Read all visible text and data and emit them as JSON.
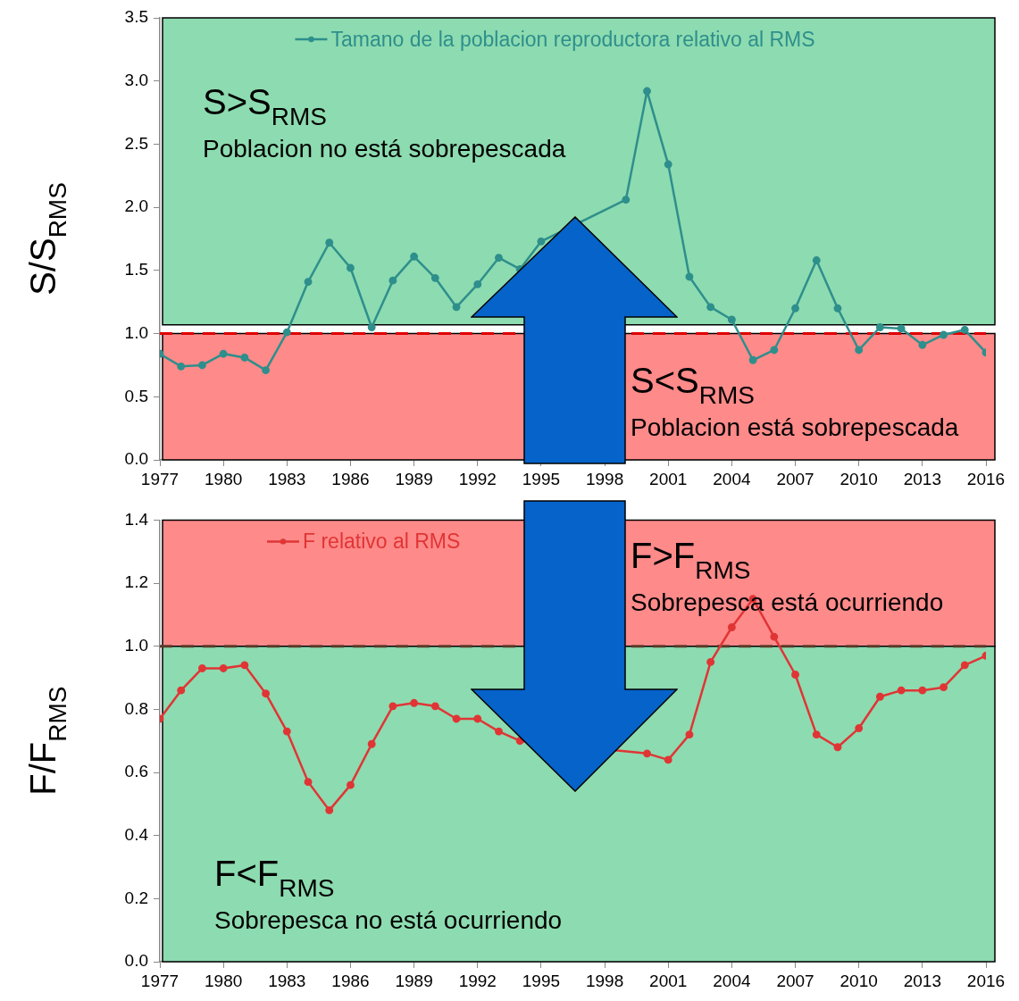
{
  "chart_data": [
    {
      "type": "line",
      "ylabel": "S/S$_{RMS}$",
      "x": [
        1977,
        1978,
        1979,
        1980,
        1981,
        1982,
        1983,
        1984,
        1985,
        1986,
        1987,
        1988,
        1989,
        1990,
        1991,
        1992,
        1993,
        1994,
        1995,
        1996,
        1997,
        1998,
        1999,
        2000,
        2001,
        2002,
        2003,
        2004,
        2005,
        2006,
        2007,
        2008,
        2009,
        2010,
        2011,
        2012,
        2013,
        2014,
        2015,
        2016
      ],
      "series": [
        {
          "name": "Tamano de la poblacion reproductora relativo al RMS",
          "color": "#2e8f8c",
          "values": [
            0.84,
            0.74,
            0.75,
            0.84,
            0.81,
            0.71,
            1.01,
            1.41,
            1.72,
            1.52,
            1.05,
            1.42,
            1.61,
            1.44,
            1.21,
            1.39,
            1.6,
            1.51,
            1.73,
            null,
            null,
            null,
            2.06,
            2.92,
            2.34,
            1.45,
            1.21,
            1.11,
            0.79,
            0.87,
            1.2,
            1.58,
            1.2,
            0.87,
            1.05,
            1.04,
            0.91,
            0.99,
            1.03,
            0.85
          ]
        }
      ],
      "xlim": [
        1977,
        2016
      ],
      "xticks": [
        1977,
        1980,
        1983,
        1986,
        1989,
        1992,
        1995,
        1998,
        2001,
        2004,
        2007,
        2010,
        2013,
        2016
      ],
      "ylim": [
        0,
        3.5
      ],
      "yticks": [
        {
          "value": 0,
          "label": "0.0"
        },
        {
          "value": 0.5,
          "label": "0.5"
        },
        {
          "value": 1,
          "label": "1.0"
        },
        {
          "value": 1.5,
          "label": "1.5"
        },
        {
          "value": 2,
          "label": "2.0"
        },
        {
          "value": 2.5,
          "label": "2.5"
        },
        {
          "value": 3,
          "label": "3.0"
        },
        {
          "value": 3.5,
          "label": "3.5"
        }
      ],
      "bands": [
        {
          "axis": "y",
          "from": 1.07,
          "to": 3.5,
          "color": "#8ddbb0",
          "label": "S>S$_{RMS}$\nPoblacion no está sobrepescada"
        },
        {
          "axis": "y",
          "from": 0,
          "to": 1,
          "color": "#ff8a8a",
          "label": "S<S$_{RMS}$\nPoblacion está sobrepescada"
        }
      ],
      "ref_lines": [
        {
          "axis": "y",
          "value": 1,
          "color": "#e00000",
          "line_style": "dashed"
        }
      ],
      "legend": "top",
      "marker": "circle"
    },
    {
      "type": "line",
      "ylabel": "F/F$_{RMS}$",
      "x": [
        1977,
        1978,
        1979,
        1980,
        1981,
        1982,
        1983,
        1984,
        1985,
        1986,
        1987,
        1988,
        1989,
        1990,
        1991,
        1992,
        1993,
        1994,
        1995,
        1996,
        1997,
        1998,
        1999,
        2000,
        2001,
        2002,
        2003,
        2004,
        2005,
        2006,
        2007,
        2008,
        2009,
        2010,
        2011,
        2012,
        2013,
        2014,
        2015,
        2016
      ],
      "series": [
        {
          "name": "F relativo al RMS",
          "color": "#e03535",
          "values": [
            0.77,
            0.86,
            0.93,
            0.93,
            0.94,
            0.85,
            0.73,
            0.57,
            0.48,
            0.56,
            0.69,
            0.81,
            0.82,
            0.81,
            0.77,
            0.77,
            0.73,
            0.7,
            null,
            null,
            null,
            null,
            null,
            0.66,
            0.64,
            0.72,
            0.95,
            1.06,
            1.15,
            1.03,
            0.91,
            0.72,
            0.68,
            0.74,
            0.84,
            0.86,
            0.86,
            0.87,
            0.94,
            0.97
          ]
        }
      ],
      "xlim": [
        1977,
        2016
      ],
      "xticks": [
        1977,
        1980,
        1983,
        1986,
        1989,
        1992,
        1995,
        1998,
        2001,
        2004,
        2007,
        2010,
        2013,
        2016
      ],
      "ylim": [
        0,
        1.4
      ],
      "yticks": [
        {
          "value": 0,
          "label": "0.0"
        },
        {
          "value": 0.2,
          "label": "0.2"
        },
        {
          "value": 0.4,
          "label": "0.4"
        },
        {
          "value": 0.6,
          "label": "0.6"
        },
        {
          "value": 0.8,
          "label": "0.8"
        },
        {
          "value": 1,
          "label": "1.0"
        },
        {
          "value": 1.2,
          "label": "1.2"
        },
        {
          "value": 1.4,
          "label": "1.4"
        }
      ],
      "bands": [
        {
          "axis": "y",
          "from": 1,
          "to": 1.4,
          "color": "#ff8a8a",
          "label": "F>F$_{RMS}$\nSobrepesca está ocurriendo"
        },
        {
          "axis": "y",
          "from": 0,
          "to": 1,
          "color": "#8ddbb0",
          "label": "F<F$_{RMS}$\nSobrepesca no está ocurriendo"
        }
      ],
      "ref_lines": [
        {
          "axis": "y",
          "value": 1,
          "color": "#5a3a2a",
          "line_style": "dashed"
        }
      ],
      "legend": "top left",
      "marker": "circle"
    }
  ]
}
